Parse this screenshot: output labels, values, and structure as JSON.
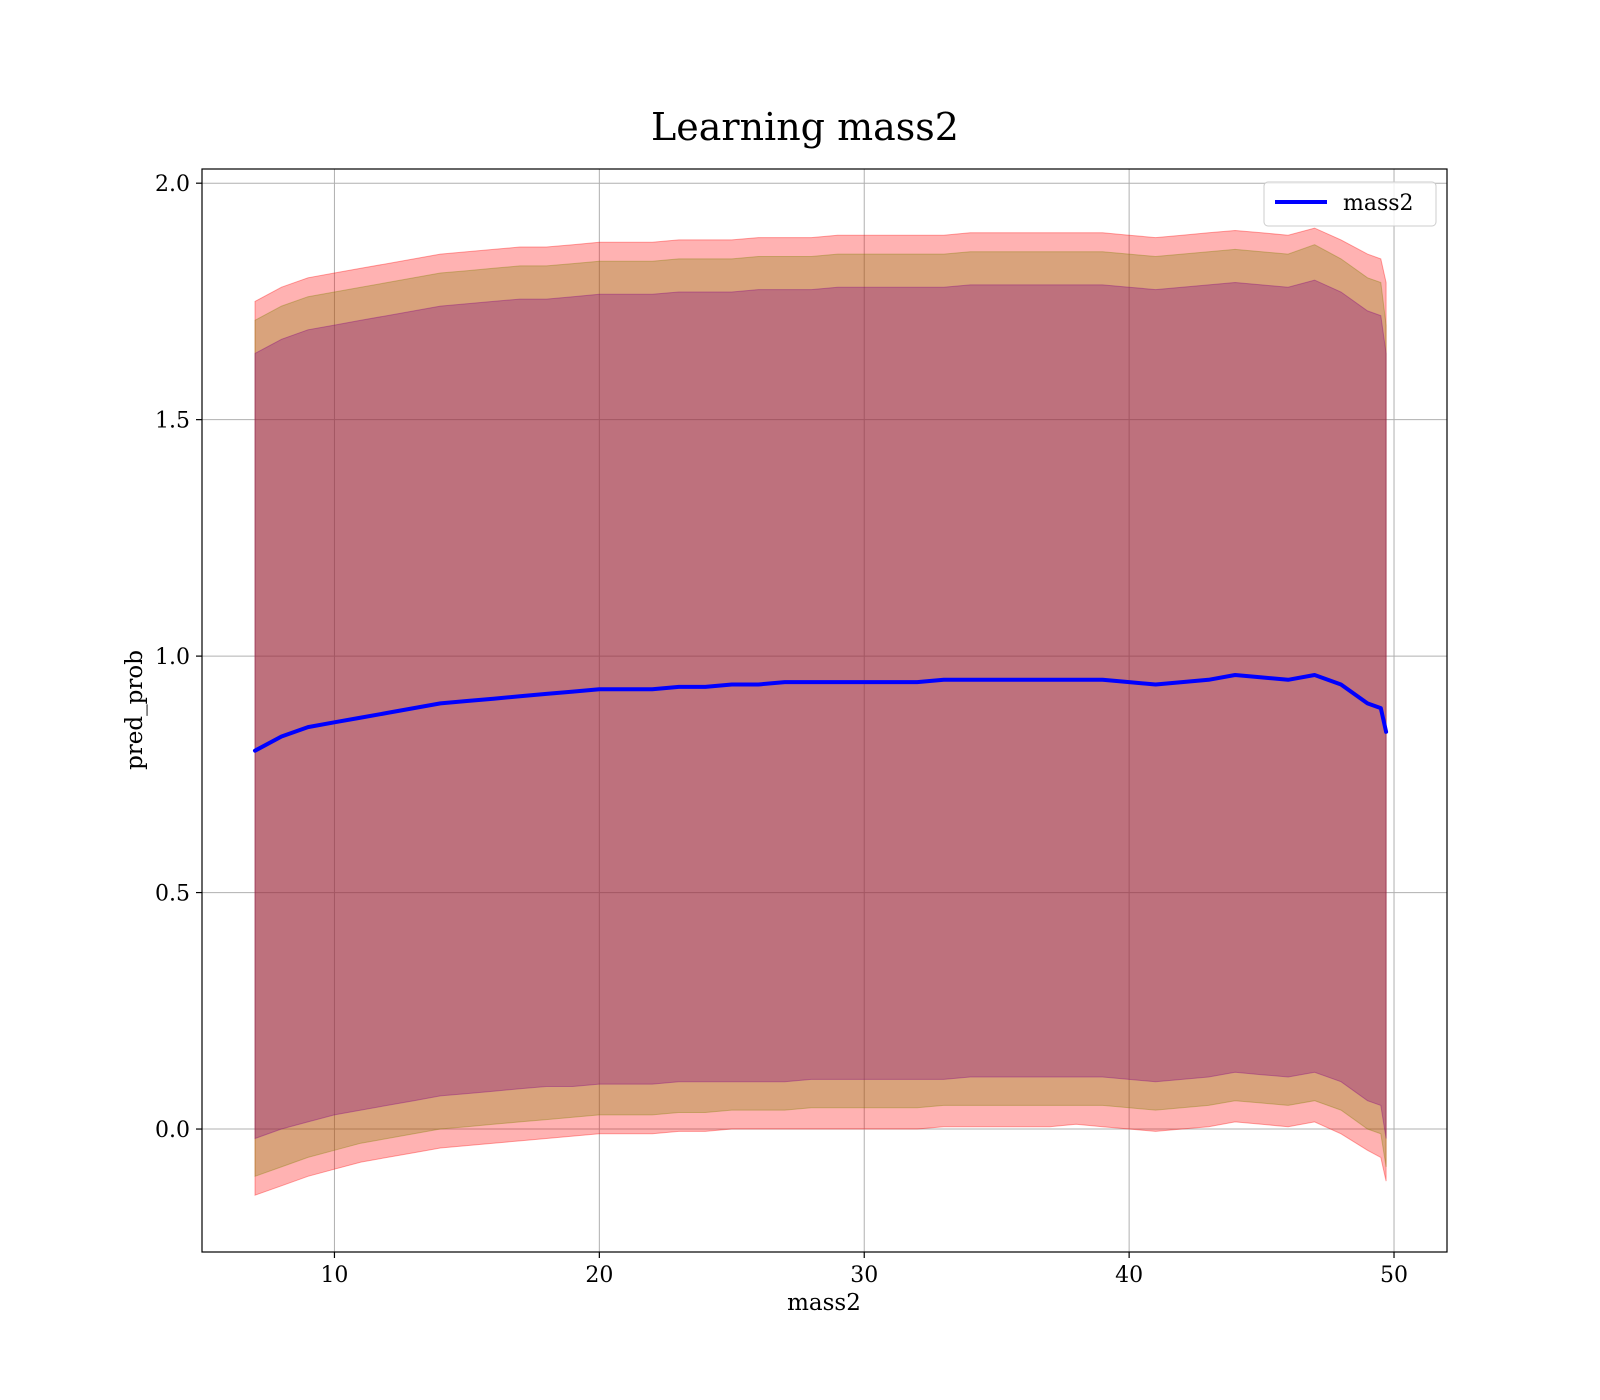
{
  "chart_data": {
    "type": "line",
    "title": "Learning mass2",
    "xlabel": "mass2",
    "ylabel": "pred_prob",
    "xlim": [
      5,
      52
    ],
    "ylim": [
      -0.26,
      2.03
    ],
    "xticks": [
      10,
      20,
      30,
      40,
      50
    ],
    "yticks": [
      0.0,
      0.5,
      1.0,
      1.5,
      2.0
    ],
    "xtick_labels": [
      "10",
      "20",
      "30",
      "40",
      "50"
    ],
    "ytick_labels": [
      "0.0",
      "0.5",
      "1.0",
      "1.5",
      "2.0"
    ],
    "grid": true,
    "legend": {
      "position": "top-right",
      "entries": [
        "mass2"
      ]
    },
    "x": [
      7.0,
      8.0,
      9.0,
      10.0,
      11.0,
      12.0,
      13.0,
      14.0,
      15.0,
      16.0,
      17.0,
      18.0,
      19.0,
      20.0,
      21.0,
      22.0,
      23.0,
      24.0,
      25.0,
      26.0,
      27.0,
      28.0,
      29.0,
      30.0,
      31.0,
      32.0,
      33.0,
      34.0,
      35.0,
      36.0,
      37.0,
      38.0,
      39.0,
      40.0,
      41.0,
      42.0,
      43.0,
      44.0,
      45.0,
      46.0,
      47.0,
      48.0,
      49.0,
      49.5,
      49.7
    ],
    "series": [
      {
        "name": "mass2",
        "color": "#0000ff",
        "values": [
          0.8,
          0.83,
          0.85,
          0.86,
          0.87,
          0.88,
          0.89,
          0.9,
          0.905,
          0.91,
          0.915,
          0.92,
          0.925,
          0.93,
          0.93,
          0.93,
          0.935,
          0.935,
          0.94,
          0.94,
          0.945,
          0.945,
          0.945,
          0.945,
          0.945,
          0.945,
          0.95,
          0.95,
          0.95,
          0.95,
          0.95,
          0.95,
          0.95,
          0.945,
          0.94,
          0.945,
          0.95,
          0.96,
          0.955,
          0.95,
          0.96,
          0.94,
          0.9,
          0.89,
          0.84
        ]
      }
    ],
    "bands": [
      {
        "color": "#ff0000",
        "opacity": 0.3,
        "lower": [
          -0.14,
          -0.12,
          -0.1,
          -0.085,
          -0.07,
          -0.06,
          -0.05,
          -0.04,
          -0.035,
          -0.03,
          -0.025,
          -0.02,
          -0.015,
          -0.01,
          -0.01,
          -0.01,
          -0.005,
          -0.005,
          0.0,
          0.0,
          0.0,
          0.0,
          0.0,
          0.0,
          0.0,
          0.0,
          0.005,
          0.005,
          0.005,
          0.005,
          0.005,
          0.01,
          0.005,
          0.0,
          -0.005,
          0.0,
          0.005,
          0.015,
          0.01,
          0.005,
          0.015,
          -0.01,
          -0.045,
          -0.06,
          -0.11
        ],
        "upper": [
          1.75,
          1.78,
          1.8,
          1.81,
          1.82,
          1.83,
          1.84,
          1.85,
          1.855,
          1.86,
          1.865,
          1.865,
          1.87,
          1.875,
          1.875,
          1.875,
          1.88,
          1.88,
          1.88,
          1.885,
          1.885,
          1.885,
          1.89,
          1.89,
          1.89,
          1.89,
          1.89,
          1.895,
          1.895,
          1.895,
          1.895,
          1.895,
          1.895,
          1.89,
          1.885,
          1.89,
          1.895,
          1.9,
          1.895,
          1.89,
          1.905,
          1.88,
          1.85,
          1.84,
          1.79
        ]
      },
      {
        "color": "#808000",
        "opacity": 0.3,
        "lower": [
          -0.1,
          -0.08,
          -0.06,
          -0.045,
          -0.03,
          -0.02,
          -0.01,
          0.0,
          0.005,
          0.01,
          0.015,
          0.02,
          0.025,
          0.03,
          0.03,
          0.03,
          0.035,
          0.035,
          0.04,
          0.04,
          0.04,
          0.045,
          0.045,
          0.045,
          0.045,
          0.045,
          0.05,
          0.05,
          0.05,
          0.05,
          0.05,
          0.05,
          0.05,
          0.045,
          0.04,
          0.045,
          0.05,
          0.06,
          0.055,
          0.05,
          0.06,
          0.04,
          0.0,
          -0.01,
          -0.08
        ],
        "upper": [
          1.71,
          1.74,
          1.76,
          1.77,
          1.78,
          1.79,
          1.8,
          1.81,
          1.815,
          1.82,
          1.825,
          1.825,
          1.83,
          1.835,
          1.835,
          1.835,
          1.84,
          1.84,
          1.84,
          1.845,
          1.845,
          1.845,
          1.85,
          1.85,
          1.85,
          1.85,
          1.85,
          1.855,
          1.855,
          1.855,
          1.855,
          1.855,
          1.855,
          1.85,
          1.845,
          1.85,
          1.855,
          1.86,
          1.855,
          1.85,
          1.87,
          1.84,
          1.8,
          1.79,
          1.7
        ]
      },
      {
        "color": "#800080",
        "opacity": 0.3,
        "lower": [
          -0.02,
          0.0,
          0.015,
          0.03,
          0.04,
          0.05,
          0.06,
          0.07,
          0.075,
          0.08,
          0.085,
          0.09,
          0.09,
          0.095,
          0.095,
          0.095,
          0.1,
          0.1,
          0.1,
          0.1,
          0.1,
          0.105,
          0.105,
          0.105,
          0.105,
          0.105,
          0.105,
          0.11,
          0.11,
          0.11,
          0.11,
          0.11,
          0.11,
          0.105,
          0.1,
          0.105,
          0.11,
          0.12,
          0.115,
          0.11,
          0.12,
          0.1,
          0.06,
          0.05,
          -0.02
        ],
        "upper": [
          1.64,
          1.67,
          1.69,
          1.7,
          1.71,
          1.72,
          1.73,
          1.74,
          1.745,
          1.75,
          1.755,
          1.755,
          1.76,
          1.765,
          1.765,
          1.765,
          1.77,
          1.77,
          1.77,
          1.775,
          1.775,
          1.775,
          1.78,
          1.78,
          1.78,
          1.78,
          1.78,
          1.785,
          1.785,
          1.785,
          1.785,
          1.785,
          1.785,
          1.78,
          1.775,
          1.78,
          1.785,
          1.79,
          1.785,
          1.78,
          1.795,
          1.77,
          1.73,
          1.72,
          1.64
        ]
      }
    ]
  }
}
